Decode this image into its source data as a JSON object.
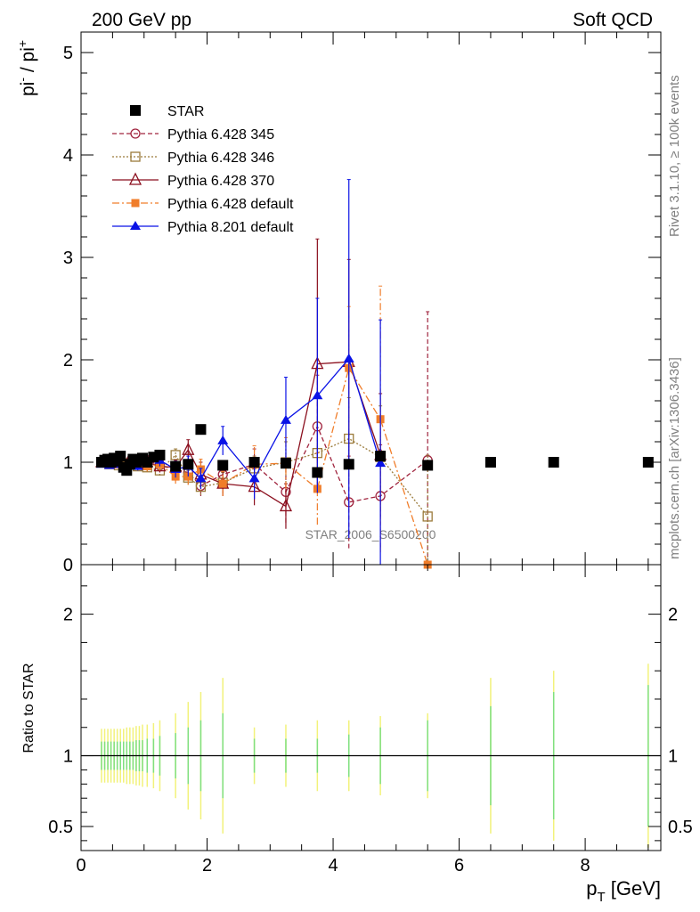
{
  "header": {
    "left_label": "200 GeV pp",
    "right_label": "Soft QCD"
  },
  "side_text": {
    "rivet": "Rivet 3.1.10, ≥ 100k events",
    "mcplots": "mcplots.cern.ch [arXiv:1306.3436]"
  },
  "watermark": "STAR_2006_S6500200",
  "chart_data": [
    {
      "type": "line",
      "panel": "main",
      "ylabel_main": "pi",
      "ylabel_sup1": "-",
      "ylabel_sep": " / pi",
      "ylabel_sup2": "+",
      "xlim": [
        0,
        9.2
      ],
      "ylim": [
        0,
        5.2
      ],
      "yticks": [
        0,
        1,
        2,
        3,
        4,
        5
      ],
      "legend_position": "top-left",
      "series": [
        {
          "name": "STAR",
          "color": "#000000",
          "marker": "square-filled",
          "line": "none",
          "x": [
            0.325,
            0.375,
            0.425,
            0.475,
            0.525,
            0.575,
            0.625,
            0.675,
            0.725,
            0.775,
            0.825,
            0.875,
            0.925,
            0.975,
            1.05,
            1.15,
            1.25,
            1.5,
            1.7,
            1.9,
            2.25,
            2.75,
            3.25,
            3.75,
            4.25,
            4.75,
            5.5,
            6.5,
            7.5,
            9.0
          ],
          "y": [
            1.0,
            1.02,
            1.03,
            1.0,
            1.04,
            1.01,
            1.06,
            0.95,
            0.92,
            0.98,
            1.03,
            1.0,
            1.02,
            1.04,
            1.0,
            1.05,
            1.07,
            0.96,
            0.98,
            1.32,
            0.97,
            1.0,
            0.99,
            0.9,
            0.98,
            1.06,
            0.97,
            1.0,
            1.0,
            1.0
          ],
          "err": [
            0.02,
            0.02,
            0.02,
            0.02,
            0.02,
            0.02,
            0.02,
            0.02,
            0.02,
            0.02,
            0.02,
            0.02,
            0.02,
            0.02,
            0.03,
            0.03,
            0.03,
            0.03,
            0.04,
            0.05,
            0.05,
            0.05,
            0.05,
            0.05,
            0.05,
            0.05,
            0.05,
            0.05,
            0.05,
            0.05
          ]
        },
        {
          "name": "Pythia 6.428 345",
          "color": "#a0243e",
          "marker": "circle-open",
          "line": "dashed",
          "x": [
            0.325,
            0.45,
            0.6,
            0.75,
            0.9,
            1.05,
            1.25,
            1.5,
            1.7,
            1.9,
            2.25,
            2.75,
            3.25,
            3.75,
            4.25,
            4.75,
            5.5
          ],
          "y": [
            1.0,
            0.99,
            1.0,
            0.98,
            0.99,
            1.02,
            0.97,
            0.93,
            0.9,
            0.77,
            0.88,
            0.98,
            0.71,
            1.35,
            0.61,
            0.67,
            1.02
          ],
          "err": [
            0.02,
            0.02,
            0.02,
            0.03,
            0.03,
            0.04,
            0.05,
            0.07,
            0.08,
            0.1,
            0.12,
            0.15,
            0.3,
            0.5,
            0.45,
            0.5,
            1.45
          ]
        },
        {
          "name": "Pythia 6.428 346",
          "color": "#9b7b3b",
          "marker": "square-open",
          "line": "dotted",
          "x": [
            0.325,
            0.45,
            0.6,
            0.75,
            0.9,
            1.05,
            1.25,
            1.5,
            1.7,
            1.9,
            2.25,
            2.75,
            3.25,
            3.75,
            4.25,
            4.75,
            5.5
          ],
          "y": [
            1.0,
            0.98,
            0.97,
            0.99,
            0.96,
            0.95,
            0.92,
            1.07,
            0.85,
            0.76,
            0.8,
            0.94,
            1.0,
            1.09,
            1.23,
            1.05,
            0.47
          ],
          "err": [
            0.02,
            0.02,
            0.02,
            0.03,
            0.03,
            0.04,
            0.05,
            0.06,
            0.07,
            0.08,
            0.1,
            0.12,
            0.2,
            0.3,
            0.4,
            0.5,
            0.6
          ]
        },
        {
          "name": "Pythia 6.428 370",
          "color": "#8b0f1e",
          "marker": "triangle-open",
          "line": "solid",
          "x": [
            0.325,
            0.45,
            0.6,
            0.75,
            0.9,
            1.05,
            1.25,
            1.5,
            1.7,
            1.9,
            2.25,
            2.75,
            3.25,
            3.75,
            4.25,
            4.75
          ],
          "y": [
            1.0,
            1.0,
            0.99,
            1.0,
            0.98,
            1.0,
            0.96,
            0.95,
            1.12,
            0.88,
            0.79,
            0.76,
            0.57,
            1.96,
            1.98,
            1.07
          ],
          "err": [
            0.02,
            0.02,
            0.03,
            0.03,
            0.04,
            0.04,
            0.06,
            0.07,
            0.1,
            0.12,
            0.12,
            0.18,
            0.22,
            1.22,
            1.0,
            0.6
          ]
        },
        {
          "name": "Pythia 6.428 default",
          "color": "#f07d2a",
          "marker": "square-filled-small",
          "line": "dashdot",
          "x": [
            0.325,
            0.45,
            0.6,
            0.75,
            0.9,
            1.05,
            1.25,
            1.5,
            1.7,
            1.9,
            2.25,
            2.75,
            3.25,
            3.75,
            4.25,
            4.75,
            5.5
          ],
          "y": [
            1.0,
            0.99,
            0.98,
            0.99,
            0.97,
            0.96,
            0.98,
            0.86,
            0.86,
            0.93,
            0.79,
            0.98,
            0.99,
            0.74,
            1.92,
            1.42,
            0.0
          ],
          "err": [
            0.02,
            0.02,
            0.03,
            0.03,
            0.04,
            0.05,
            0.06,
            0.07,
            0.08,
            0.1,
            0.12,
            0.18,
            0.25,
            0.35,
            0.6,
            1.3,
            0.0
          ]
        },
        {
          "name": "Pythia 8.201 default",
          "color": "#0a12e6",
          "marker": "triangle-filled",
          "line": "solid",
          "x": [
            0.325,
            0.45,
            0.6,
            0.75,
            0.9,
            1.05,
            1.25,
            1.5,
            1.7,
            1.9,
            2.25,
            2.75,
            3.25,
            3.75,
            4.25,
            4.75
          ],
          "y": [
            0.98,
            0.97,
            0.98,
            0.97,
            0.96,
            0.99,
            1.02,
            0.93,
            0.96,
            0.84,
            1.21,
            0.84,
            1.41,
            1.65,
            2.01,
            0.99
          ],
          "err": [
            0.02,
            0.02,
            0.03,
            0.03,
            0.04,
            0.04,
            0.06,
            0.08,
            0.1,
            0.1,
            0.14,
            0.2,
            0.42,
            0.95,
            1.75,
            1.4
          ]
        }
      ]
    },
    {
      "type": "line",
      "panel": "ratio",
      "ylabel": "Ratio to STAR",
      "xlabel_main": "p",
      "xlabel_sub": "T",
      "xlabel_unit": " [GeV]",
      "xlim": [
        0,
        9.2
      ],
      "ylim": [
        0.33,
        2.35
      ],
      "xticks": [
        0,
        2,
        4,
        6,
        8
      ],
      "yticks": [
        0.5,
        1,
        2
      ],
      "ytick_labels": [
        "0.5",
        "1",
        "2"
      ],
      "reference_line": 1,
      "bands": {
        "x": [
          0.325,
          0.375,
          0.425,
          0.475,
          0.525,
          0.575,
          0.625,
          0.675,
          0.725,
          0.775,
          0.825,
          0.875,
          0.925,
          0.975,
          1.05,
          1.15,
          1.25,
          1.5,
          1.7,
          1.9,
          2.25,
          2.75,
          3.25,
          3.75,
          4.25,
          4.75,
          5.5,
          6.5,
          7.5,
          9.0
        ],
        "stat_rel": [
          0.1,
          0.1,
          0.1,
          0.1,
          0.1,
          0.1,
          0.1,
          0.1,
          0.1,
          0.1,
          0.1,
          0.11,
          0.11,
          0.11,
          0.12,
          0.12,
          0.14,
          0.16,
          0.2,
          0.25,
          0.3,
          0.12,
          0.12,
          0.12,
          0.15,
          0.2,
          0.25,
          0.35,
          0.45,
          0.5
        ],
        "tot_rel": [
          0.19,
          0.19,
          0.19,
          0.19,
          0.19,
          0.19,
          0.19,
          0.19,
          0.2,
          0.2,
          0.2,
          0.21,
          0.21,
          0.22,
          0.22,
          0.23,
          0.25,
          0.3,
          0.38,
          0.45,
          0.55,
          0.2,
          0.22,
          0.25,
          0.25,
          0.28,
          0.3,
          0.55,
          0.6,
          0.65
        ],
        "stat_color": "#7fe07f",
        "tot_color": "#f2f27a"
      }
    }
  ]
}
